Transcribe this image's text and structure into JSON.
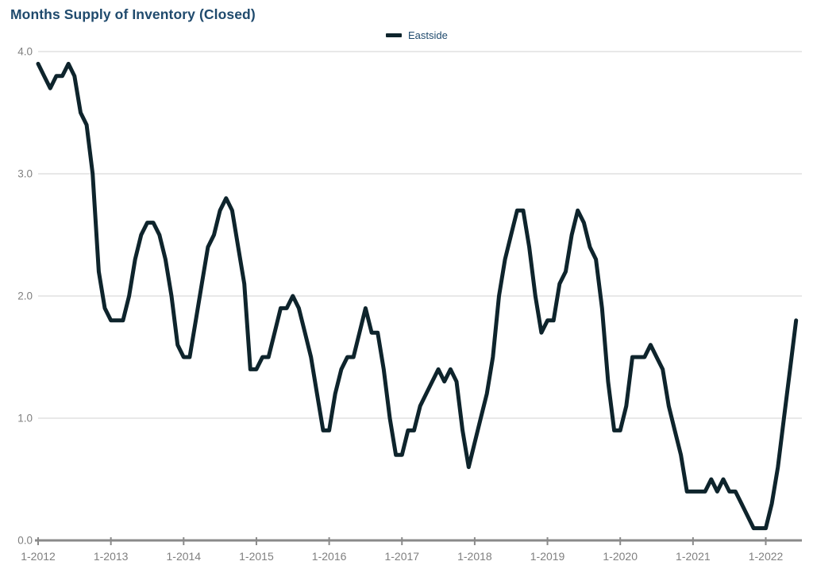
{
  "title": "Months Supply of Inventory (Closed)",
  "legend": {
    "series_label": "Eastside",
    "position": "top-center"
  },
  "colors": {
    "title_text": "#1f4a6d",
    "legend_text": "#1f4a6d",
    "series_line": "#0e242c",
    "gridline": "#d9d9d9",
    "axis_line": "#8a8a8a",
    "tick_label": "#7f7f7f"
  },
  "chart_data": {
    "type": "line",
    "title": "Months Supply of Inventory (Closed)",
    "xlabel": "",
    "ylabel": "",
    "ylim": [
      0,
      4
    ],
    "grid": "horizontal",
    "legend_position": "top-center",
    "y_axis": {
      "ticks": [
        {
          "label": "0.0",
          "value": 0
        },
        {
          "label": "1.0",
          "value": 1
        },
        {
          "label": "2.0",
          "value": 2
        },
        {
          "label": "3.0",
          "value": 3
        },
        {
          "label": "4.0",
          "value": 4
        }
      ]
    },
    "x_axis": {
      "tick_labels": [
        "1-2012",
        "1-2013",
        "1-2014",
        "1-2015",
        "1-2016",
        "1-2017",
        "1-2018",
        "1-2019",
        "1-2020",
        "1-2021",
        "1-2022"
      ],
      "months_between_ticks": 12
    },
    "series": [
      {
        "name": "Eastside",
        "color": "#0e242c",
        "frequency": "monthly",
        "start": "Jan 2012",
        "end": "Jun 2022",
        "values": [
          3.9,
          3.8,
          3.7,
          3.8,
          3.8,
          3.9,
          3.8,
          3.5,
          3.4,
          3.0,
          2.2,
          1.9,
          1.8,
          1.8,
          1.8,
          2.0,
          2.3,
          2.5,
          2.6,
          2.6,
          2.5,
          2.3,
          2.0,
          1.6,
          1.5,
          1.5,
          1.8,
          2.1,
          2.4,
          2.5,
          2.7,
          2.8,
          2.7,
          2.4,
          2.1,
          1.4,
          1.4,
          1.5,
          1.5,
          1.7,
          1.9,
          1.9,
          2.0,
          1.9,
          1.7,
          1.5,
          1.2,
          0.9,
          0.9,
          1.2,
          1.4,
          1.5,
          1.5,
          1.7,
          1.9,
          1.7,
          1.7,
          1.4,
          1.0,
          0.7,
          0.7,
          0.9,
          0.9,
          1.1,
          1.2,
          1.3,
          1.4,
          1.3,
          1.4,
          1.3,
          0.9,
          0.6,
          0.8,
          1.0,
          1.2,
          1.5,
          2.0,
          2.3,
          2.5,
          2.7,
          2.7,
          2.4,
          2.0,
          1.7,
          1.8,
          1.8,
          2.1,
          2.2,
          2.5,
          2.7,
          2.6,
          2.4,
          2.3,
          1.9,
          1.3,
          0.9,
          0.9,
          1.1,
          1.5,
          1.5,
          1.5,
          1.6,
          1.5,
          1.4,
          1.1,
          0.9,
          0.7,
          0.4,
          0.4,
          0.4,
          0.4,
          0.5,
          0.4,
          0.5,
          0.4,
          0.4,
          0.3,
          0.2,
          0.1,
          0.1,
          0.1,
          0.3,
          0.6,
          1.0,
          1.4,
          1.8
        ]
      }
    ]
  }
}
